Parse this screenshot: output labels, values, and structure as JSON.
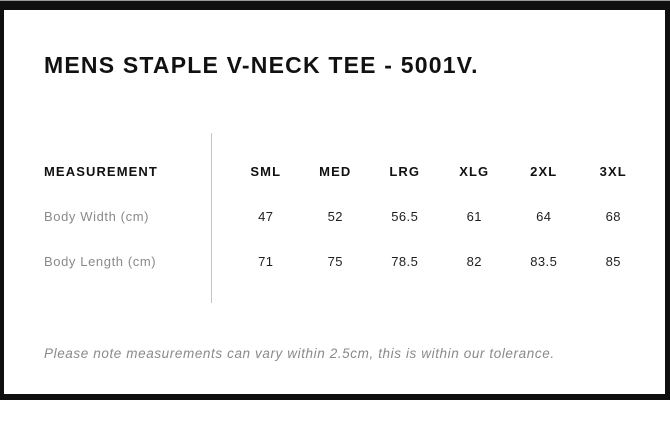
{
  "page": {
    "title": "MENS STAPLE V-NECK TEE - 5001V.",
    "note": "Please note measurements can vary within 2.5cm, this is within our tolerance."
  },
  "size_chart": {
    "measurement_header": "MEASUREMENT",
    "size_headers": [
      "SML",
      "MED",
      "LRG",
      "XLG",
      "2XL",
      "3XL"
    ],
    "rows": [
      {
        "label": "Body Width (cm)",
        "values": [
          "47",
          "52",
          "56.5",
          "61",
          "64",
          "68"
        ]
      },
      {
        "label": "Body Length (cm)",
        "values": [
          "71",
          "75",
          "78.5",
          "82",
          "83.5",
          "85"
        ]
      }
    ]
  },
  "colors": {
    "frame_black": "#0f0f0f",
    "heading_text": "#111111",
    "muted_gray": "#8a8a8a",
    "value_text": "#1e1e1e",
    "divider_gray": "#c4c4c4"
  }
}
